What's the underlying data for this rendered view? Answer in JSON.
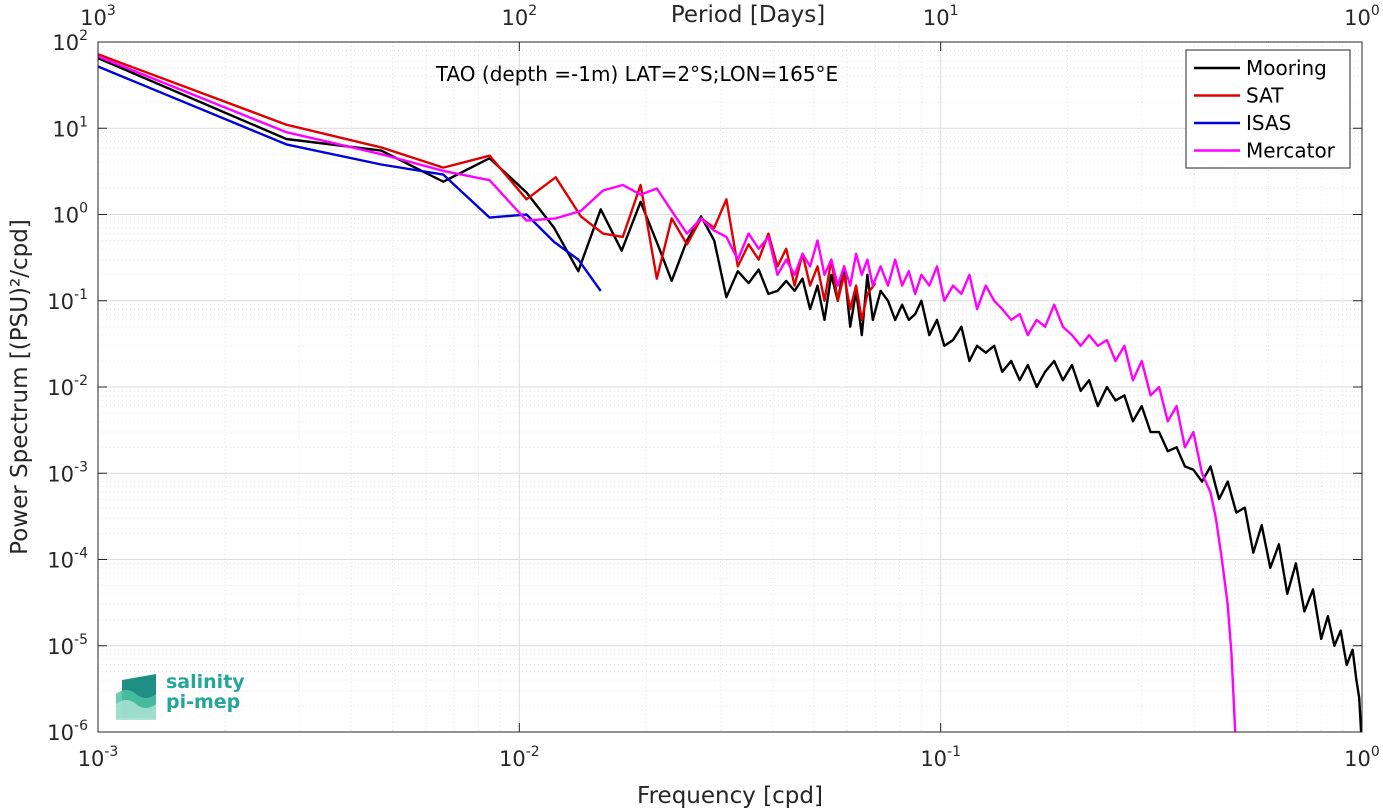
{
  "chart_data": {
    "type": "line",
    "title": "TAO (depth =-1m) LAT=2°S;LON=165°E",
    "xlabel": "Frequency [cpd]",
    "ylabel": "Power Spectrum [(PSU)²/cpd]",
    "top_xlabel": "Period [Days]",
    "x_scale": "log",
    "y_scale": "log",
    "xlim": [
      0.001,
      1
    ],
    "ylim": [
      1e-06,
      100
    ],
    "grid": true,
    "legend_position": "top-right",
    "x_ticks": [
      {
        "base": "10",
        "exp": "-3"
      },
      {
        "base": "10",
        "exp": "-2"
      },
      {
        "base": "10",
        "exp": "-1"
      },
      {
        "base": "10",
        "exp": "0"
      }
    ],
    "top_ticks": [
      {
        "base": "10",
        "exp": "3"
      },
      {
        "base": "10",
        "exp": "2"
      },
      {
        "base": "10",
        "exp": "1"
      },
      {
        "base": "10",
        "exp": "0"
      }
    ],
    "y_ticks": [
      {
        "base": "10",
        "exp": "2"
      },
      {
        "base": "10",
        "exp": "1"
      },
      {
        "base": "10",
        "exp": "0"
      },
      {
        "base": "10",
        "exp": "-1"
      },
      {
        "base": "10",
        "exp": "-2"
      },
      {
        "base": "10",
        "exp": "-3"
      },
      {
        "base": "10",
        "exp": "-4"
      },
      {
        "base": "10",
        "exp": "-5"
      },
      {
        "base": "10",
        "exp": "-6"
      }
    ],
    "series": [
      {
        "name": "Mooring",
        "color": "#000000",
        "x": [
          0.001,
          0.0028,
          0.0047,
          0.0066,
          0.0085,
          0.0104,
          0.0121,
          0.0138,
          0.0156,
          0.0175,
          0.0194,
          0.0213,
          0.023,
          0.025,
          0.027,
          0.029,
          0.031,
          0.033,
          0.035,
          0.037,
          0.039,
          0.041,
          0.043,
          0.045,
          0.047,
          0.049,
          0.051,
          0.053,
          0.055,
          0.057,
          0.059,
          0.061,
          0.063,
          0.065,
          0.067,
          0.069,
          0.072,
          0.075,
          0.078,
          0.081,
          0.084,
          0.087,
          0.09,
          0.094,
          0.098,
          0.102,
          0.107,
          0.112,
          0.117,
          0.122,
          0.128,
          0.134,
          0.14,
          0.147,
          0.154,
          0.161,
          0.169,
          0.177,
          0.186,
          0.195,
          0.205,
          0.215,
          0.225,
          0.236,
          0.248,
          0.26,
          0.273,
          0.286,
          0.3,
          0.315,
          0.33,
          0.346,
          0.363,
          0.38,
          0.398,
          0.417,
          0.437,
          0.458,
          0.48,
          0.503,
          0.527,
          0.552,
          0.578,
          0.606,
          0.635,
          0.665,
          0.697,
          0.73,
          0.765,
          0.8,
          0.83,
          0.86,
          0.89,
          0.92,
          0.95,
          0.97,
          0.985,
          0.995
        ],
        "y": [
          65,
          7.5,
          5.5,
          2.4,
          4.5,
          1.8,
          0.7,
          0.22,
          1.15,
          0.38,
          1.4,
          0.45,
          0.17,
          0.5,
          0.95,
          0.5,
          0.11,
          0.22,
          0.16,
          0.23,
          0.12,
          0.13,
          0.17,
          0.13,
          0.18,
          0.08,
          0.15,
          0.06,
          0.2,
          0.1,
          0.25,
          0.05,
          0.13,
          0.04,
          0.2,
          0.06,
          0.13,
          0.1,
          0.06,
          0.09,
          0.06,
          0.07,
          0.1,
          0.04,
          0.06,
          0.03,
          0.035,
          0.05,
          0.02,
          0.03,
          0.025,
          0.03,
          0.015,
          0.02,
          0.012,
          0.018,
          0.01,
          0.015,
          0.02,
          0.012,
          0.018,
          0.009,
          0.012,
          0.006,
          0.01,
          0.007,
          0.008,
          0.004,
          0.006,
          0.003,
          0.003,
          0.0018,
          0.002,
          0.0012,
          0.0011,
          0.0008,
          0.0012,
          0.0005,
          0.0008,
          0.00035,
          0.0004,
          0.00012,
          0.00025,
          8e-05,
          0.00015,
          4e-05,
          9e-05,
          2.5e-05,
          4.5e-05,
          1.2e-05,
          2.2e-05,
          1e-05,
          1.5e-05,
          6e-06,
          9e-06,
          4e-06,
          2.5e-06,
          1e-06
        ]
      },
      {
        "name": "SAT",
        "color": "#e00000",
        "x": [
          0.001,
          0.0028,
          0.0047,
          0.0066,
          0.0085,
          0.0104,
          0.0122,
          0.014,
          0.0158,
          0.0176,
          0.0194,
          0.0212,
          0.023,
          0.025,
          0.027,
          0.029,
          0.031,
          0.033,
          0.035,
          0.037,
          0.039,
          0.041,
          0.043,
          0.045,
          0.047,
          0.049,
          0.051,
          0.053,
          0.055,
          0.057,
          0.059,
          0.061,
          0.063,
          0.065,
          0.067,
          0.07
        ],
        "y": [
          72,
          11,
          6,
          3.5,
          4.8,
          1.5,
          2.7,
          0.95,
          0.6,
          0.55,
          2.2,
          0.18,
          0.9,
          0.45,
          0.9,
          0.7,
          1.5,
          0.25,
          0.45,
          0.3,
          0.6,
          0.25,
          0.4,
          0.15,
          0.35,
          0.15,
          0.25,
          0.1,
          0.3,
          0.1,
          0.2,
          0.08,
          0.15,
          0.06,
          0.12,
          0.16
        ]
      },
      {
        "name": "ISAS",
        "color": "#0000dd",
        "x": [
          0.001,
          0.0028,
          0.0047,
          0.0066,
          0.0085,
          0.0104,
          0.0121,
          0.0138,
          0.0156
        ],
        "y": [
          52,
          6.5,
          3.8,
          2.9,
          0.92,
          1.0,
          0.48,
          0.3,
          0.13
        ]
      },
      {
        "name": "Mercator",
        "color": "#ff00ff",
        "x": [
          0.001,
          0.0028,
          0.0047,
          0.0066,
          0.0085,
          0.0104,
          0.0122,
          0.014,
          0.0158,
          0.0176,
          0.0194,
          0.0212,
          0.023,
          0.025,
          0.027,
          0.029,
          0.031,
          0.033,
          0.035,
          0.037,
          0.039,
          0.041,
          0.043,
          0.045,
          0.047,
          0.049,
          0.051,
          0.053,
          0.055,
          0.057,
          0.059,
          0.061,
          0.063,
          0.065,
          0.067,
          0.069,
          0.072,
          0.075,
          0.078,
          0.081,
          0.084,
          0.087,
          0.09,
          0.094,
          0.098,
          0.102,
          0.107,
          0.112,
          0.117,
          0.122,
          0.128,
          0.134,
          0.14,
          0.147,
          0.154,
          0.161,
          0.169,
          0.177,
          0.186,
          0.195,
          0.205,
          0.215,
          0.225,
          0.236,
          0.248,
          0.26,
          0.273,
          0.286,
          0.3,
          0.315,
          0.33,
          0.346,
          0.363,
          0.38,
          0.398,
          0.417,
          0.437,
          0.45,
          0.465,
          0.48,
          0.49,
          0.5
        ],
        "y": [
          68,
          9,
          5,
          3.2,
          2.5,
          0.85,
          0.9,
          1.1,
          1.9,
          2.2,
          1.7,
          2.0,
          1.1,
          0.6,
          0.9,
          0.65,
          0.55,
          0.3,
          0.6,
          0.4,
          0.55,
          0.2,
          0.3,
          0.2,
          0.35,
          0.25,
          0.5,
          0.2,
          0.3,
          0.15,
          0.25,
          0.15,
          0.35,
          0.2,
          0.3,
          0.15,
          0.25,
          0.15,
          0.3,
          0.15,
          0.22,
          0.12,
          0.2,
          0.15,
          0.25,
          0.1,
          0.15,
          0.12,
          0.2,
          0.08,
          0.15,
          0.1,
          0.08,
          0.06,
          0.07,
          0.04,
          0.06,
          0.05,
          0.09,
          0.05,
          0.04,
          0.03,
          0.04,
          0.03,
          0.035,
          0.02,
          0.03,
          0.012,
          0.02,
          0.008,
          0.01,
          0.004,
          0.006,
          0.002,
          0.003,
          0.001,
          0.0006,
          0.0003,
          0.0001,
          3e-05,
          8e-06,
          1e-06
        ]
      }
    ]
  },
  "logo": {
    "line1": "salinity",
    "line2": "pi-mep"
  }
}
